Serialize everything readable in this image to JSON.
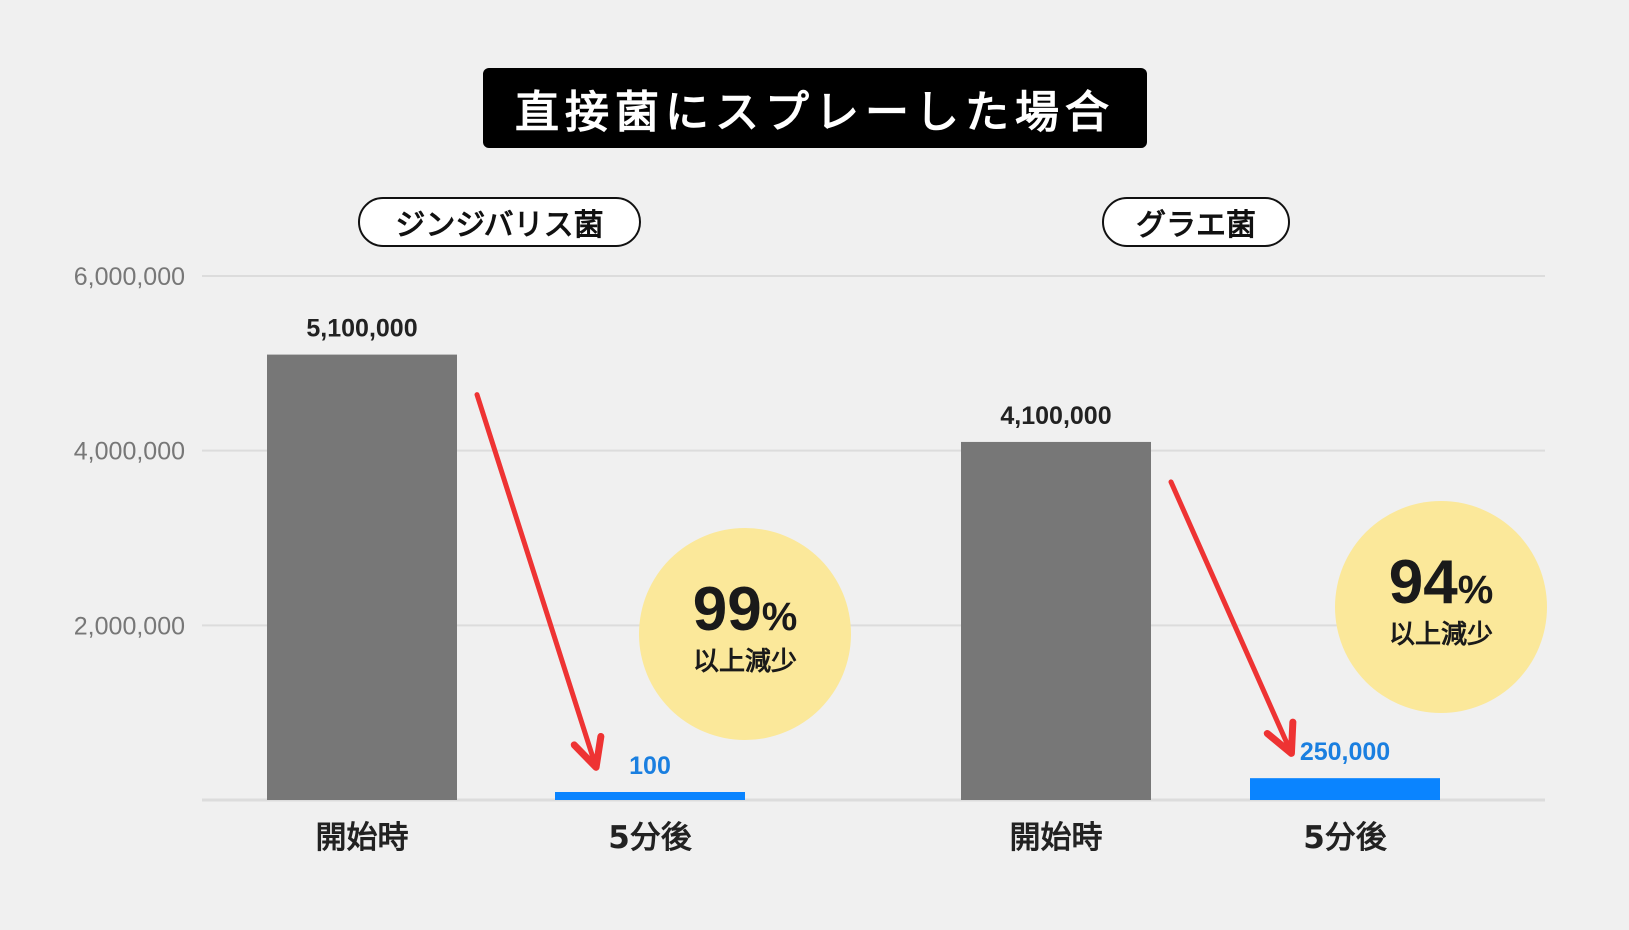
{
  "chart_data": {
    "type": "bar",
    "title": "直接菌にスプレーした場合",
    "ylim": [
      0,
      6000000
    ],
    "yticks": [
      "2,000,000",
      "4,000,000",
      "6,000,000"
    ],
    "grid": true,
    "groups": [
      {
        "name": "ジンジバリス菌",
        "categories": [
          "開始時",
          "5分後"
        ],
        "values": [
          5100000,
          100
        ],
        "value_labels": [
          "5,100,000",
          "100"
        ],
        "reduction": {
          "percent": "99",
          "unit": "%",
          "text": "以上減少"
        }
      },
      {
        "name": "グラエ菌",
        "categories": [
          "開始時",
          "5分後"
        ],
        "values": [
          4100000,
          250000
        ],
        "value_labels": [
          "4,100,000",
          "250,000"
        ],
        "reduction": {
          "percent": "94",
          "unit": "%",
          "text": "以上減少"
        }
      }
    ]
  },
  "colors": {
    "before_bar": "#777777",
    "after_bar": "#0a84ff",
    "after_label": "#1a7fe0",
    "arrow": "#ee3333",
    "badge": "#fbe89a",
    "axis_label": "#777777",
    "grid": "#dcdcdc"
  }
}
